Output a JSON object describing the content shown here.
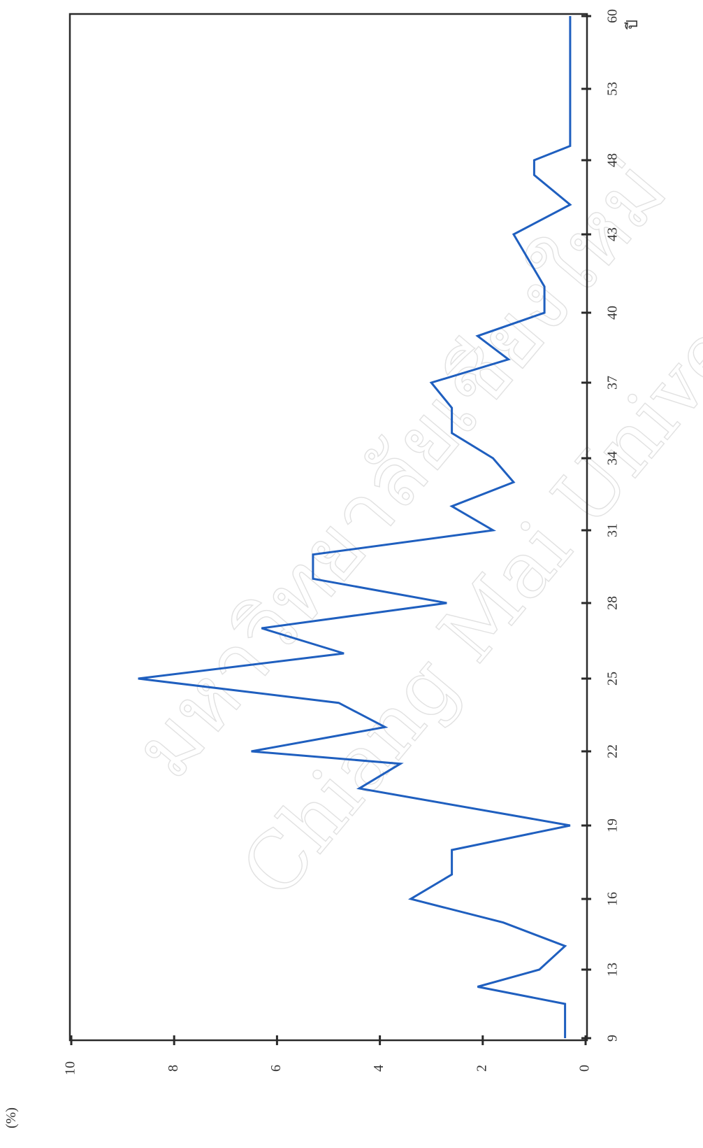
{
  "chart_data": {
    "type": "line",
    "orientation": "rotated-90-clockwise",
    "ylabel": "(%)",
    "xlabel": "ปี",
    "ylim": [
      0,
      10
    ],
    "y_ticks": [
      "0",
      "2",
      "4",
      "6",
      "8",
      "10"
    ],
    "x_tick_labels": [
      "9",
      "13",
      "16",
      "19",
      "22",
      "25",
      "28",
      "31",
      "34",
      "37",
      "40",
      "43",
      "48",
      "53",
      "60"
    ],
    "x_tick_positions": [
      9,
      13,
      16,
      19,
      22,
      25,
      28,
      31,
      34,
      37,
      40,
      43,
      48,
      53,
      60
    ],
    "grid": false,
    "legend": "none",
    "series": [
      {
        "color": "#1f5fbf",
        "points": [
          {
            "x": 9,
            "y": 0.4
          },
          {
            "x": 11,
            "y": 0.4
          },
          {
            "x": 12,
            "y": 2.1
          },
          {
            "x": 13,
            "y": 0.9
          },
          {
            "x": 14,
            "y": 0.4
          },
          {
            "x": 15,
            "y": 1.6
          },
          {
            "x": 16,
            "y": 3.4
          },
          {
            "x": 17,
            "y": 2.6
          },
          {
            "x": 18,
            "y": 2.6
          },
          {
            "x": 19,
            "y": 0.3
          },
          {
            "x": 20.5,
            "y": 4.4
          },
          {
            "x": 21.5,
            "y": 3.6
          },
          {
            "x": 22,
            "y": 6.5
          },
          {
            "x": 23,
            "y": 3.9
          },
          {
            "x": 24,
            "y": 4.8
          },
          {
            "x": 25,
            "y": 8.7
          },
          {
            "x": 26,
            "y": 4.7
          },
          {
            "x": 27,
            "y": 6.3
          },
          {
            "x": 28,
            "y": 2.7
          },
          {
            "x": 29,
            "y": 5.3
          },
          {
            "x": 30,
            "y": 5.3
          },
          {
            "x": 31,
            "y": 1.8
          },
          {
            "x": 32,
            "y": 2.6
          },
          {
            "x": 33,
            "y": 1.4
          },
          {
            "x": 34,
            "y": 1.8
          },
          {
            "x": 35,
            "y": 2.6
          },
          {
            "x": 36,
            "y": 2.6
          },
          {
            "x": 37,
            "y": 3.0
          },
          {
            "x": 38,
            "y": 1.5
          },
          {
            "x": 39,
            "y": 2.1
          },
          {
            "x": 40,
            "y": 0.8
          },
          {
            "x": 41,
            "y": 0.8
          },
          {
            "x": 43,
            "y": 1.4
          },
          {
            "x": 45,
            "y": 0.3
          },
          {
            "x": 47,
            "y": 1.0
          },
          {
            "x": 48,
            "y": 1.0
          },
          {
            "x": 49,
            "y": 0.3
          },
          {
            "x": 60,
            "y": 0.3
          }
        ]
      }
    ]
  },
  "watermark": {
    "line1": "มหาวิทยาลัยเชียงใหม่",
    "line2": "Chiang Mai University"
  }
}
